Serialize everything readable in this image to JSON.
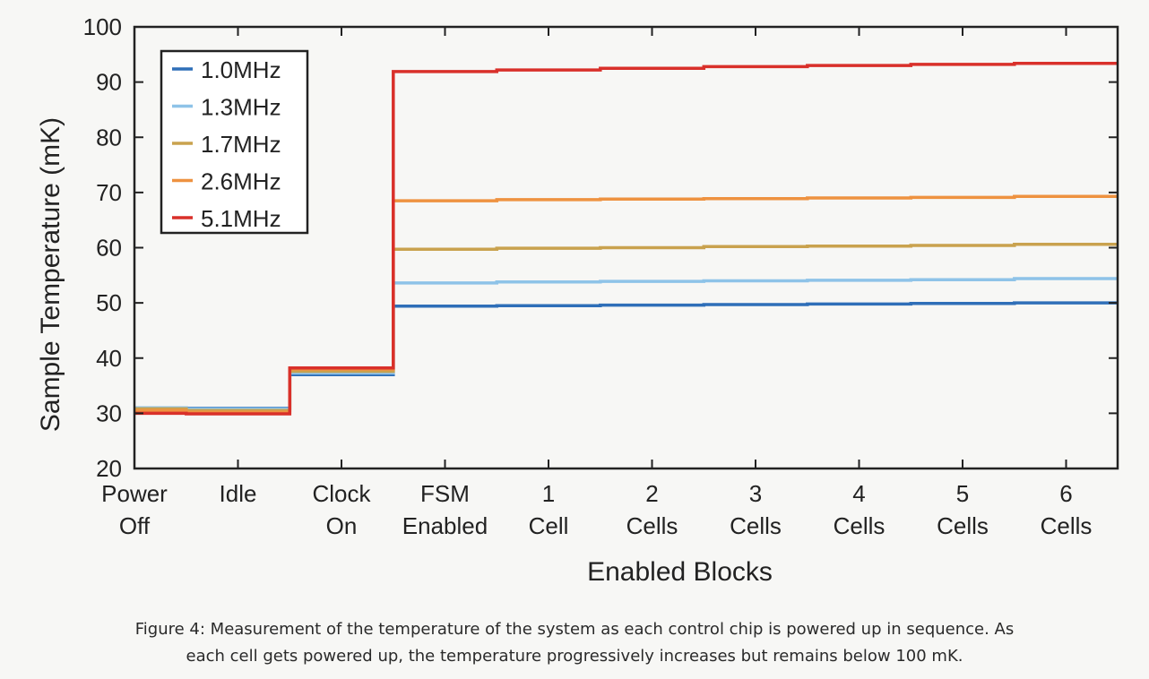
{
  "chart_data": {
    "type": "line",
    "step": true,
    "xlabel": "Enabled Blocks",
    "ylabel": "Sample Temperature (mK)",
    "ylim": [
      20,
      100
    ],
    "yticks": [
      20,
      30,
      40,
      50,
      60,
      70,
      80,
      90,
      100
    ],
    "categories": [
      [
        "Power",
        "Off"
      ],
      [
        "Idle"
      ],
      [
        "Clock",
        "On"
      ],
      [
        "FSM",
        "Enabled"
      ],
      [
        "1",
        "Cell"
      ],
      [
        "2",
        "Cells"
      ],
      [
        "3",
        "Cells"
      ],
      [
        "4",
        "Cells"
      ],
      [
        "5",
        "Cells"
      ],
      [
        "6",
        "Cells"
      ]
    ],
    "legend_position": "top-left",
    "series": [
      {
        "name": "1.0MHz",
        "color": "#2f6fb8",
        "values": [
          31.0,
          30.9,
          37.0,
          49.4,
          49.5,
          49.6,
          49.7,
          49.8,
          49.9,
          50.0
        ]
      },
      {
        "name": "1.3MHz",
        "color": "#8ec3e8",
        "values": [
          31.0,
          30.8,
          37.3,
          53.6,
          53.8,
          53.9,
          54.0,
          54.1,
          54.2,
          54.4
        ]
      },
      {
        "name": "1.7MHz",
        "color": "#c9a24e",
        "values": [
          30.8,
          30.5,
          37.6,
          59.7,
          59.9,
          60.0,
          60.2,
          60.3,
          60.4,
          60.6
        ]
      },
      {
        "name": "2.6MHz",
        "color": "#ee9240",
        "values": [
          30.5,
          30.2,
          38.0,
          68.5,
          68.7,
          68.8,
          68.9,
          69.0,
          69.1,
          69.3
        ]
      },
      {
        "name": "5.1MHz",
        "color": "#d9302a",
        "values": [
          30.0,
          29.9,
          38.2,
          91.9,
          92.2,
          92.5,
          92.8,
          93.0,
          93.2,
          93.4
        ]
      }
    ]
  },
  "caption": {
    "line1": "Figure 4: Measurement of the temperature of the system as each control chip is powered up in sequence. As",
    "line2": "each cell gets powered up, the temperature progressively increases but remains below 100 mK."
  }
}
